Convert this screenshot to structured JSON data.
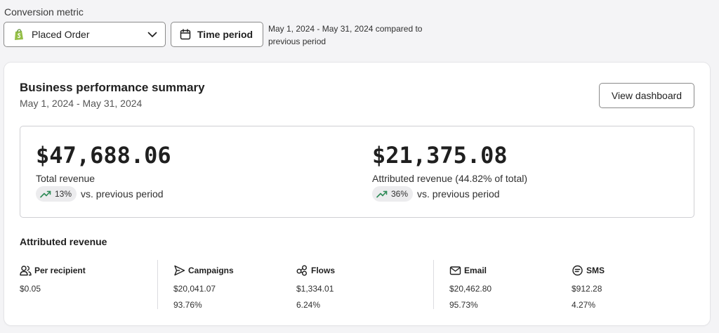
{
  "conversion": {
    "label": "Conversion metric",
    "selected": "Placed Order",
    "time_period_label": "Time period",
    "period_description": "May 1, 2024 - May 31, 2024 compared to previous period"
  },
  "card": {
    "title": "Business performance summary",
    "date_range": "May 1, 2024 - May 31, 2024",
    "dashboard_button": "View dashboard"
  },
  "summary": {
    "total": {
      "value": "$47,688.06",
      "label": "Total revenue",
      "change": "13%",
      "comparison": "vs. previous period"
    },
    "attributed": {
      "value": "$21,375.08",
      "label": "Attributed revenue (44.82% of total)",
      "change": "36%",
      "comparison": "vs. previous period"
    }
  },
  "attributed_section": {
    "title": "Attributed revenue",
    "metrics": [
      {
        "name": "Per recipient",
        "icon": "people-icon",
        "value": "$0.05",
        "percent": ""
      },
      {
        "name": "Campaigns",
        "icon": "send-icon",
        "value": "$20,041.07",
        "percent": "93.76%"
      },
      {
        "name": "Flows",
        "icon": "flows-icon",
        "value": "$1,334.01",
        "percent": "6.24%"
      },
      {
        "name": "Email",
        "icon": "email-icon",
        "value": "$20,462.80",
        "percent": "95.73%"
      },
      {
        "name": "SMS",
        "icon": "sms-icon",
        "value": "$912.28",
        "percent": "4.27%"
      }
    ]
  },
  "colors": {
    "trend_up": "#2e8b57",
    "shopify_green": "#95bf47"
  }
}
